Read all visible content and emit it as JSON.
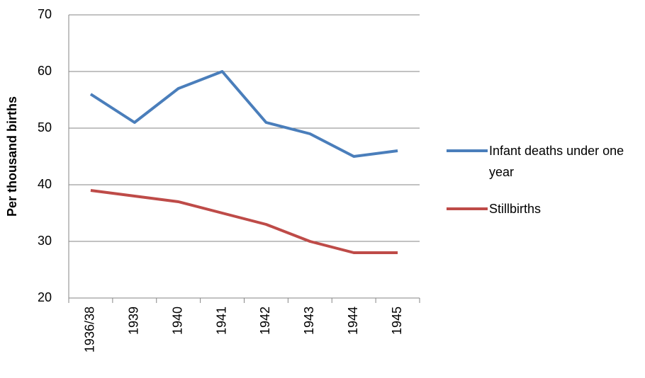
{
  "chart_data": {
    "type": "line",
    "y_label": "Per thousand births",
    "categories": [
      "1936/38",
      "1939",
      "1940",
      "1941",
      "1942",
      "1943",
      "1944",
      "1945"
    ],
    "series": [
      {
        "name": "Infant deaths under one year",
        "color": "#4a7ebb",
        "values": [
          56,
          51,
          57,
          60,
          51,
          49,
          45,
          46
        ]
      },
      {
        "name": "Stillbirths",
        "color": "#be4b48",
        "values": [
          39,
          38,
          37,
          35,
          33,
          30,
          28,
          28
        ]
      }
    ],
    "ylim": [
      20,
      70
    ],
    "yticks": [
      20,
      30,
      40,
      50,
      60,
      70
    ],
    "grid": true,
    "legend": "right"
  }
}
